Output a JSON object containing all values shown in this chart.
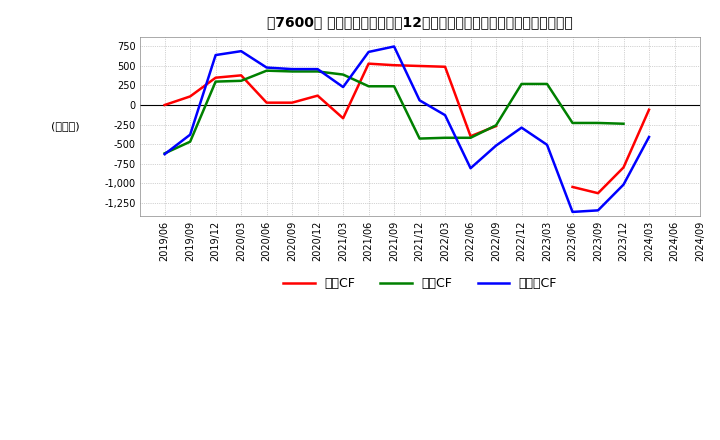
{
  "title": "【7600】 キャッシュフローの12か月移動合計の対前年同期増減額の推移",
  "ylabel": "(百万円)",
  "ylim": [
    -1420,
    870
  ],
  "yticks": [
    750,
    500,
    250,
    0,
    -250,
    -500,
    -750,
    -1000,
    -1250
  ],
  "background_color": "#ffffff",
  "plot_bg_color": "#ffffff",
  "grid_color": "#aaaaaa",
  "dates": [
    "2019/06",
    "2019/09",
    "2019/12",
    "2020/03",
    "2020/06",
    "2020/09",
    "2020/12",
    "2021/03",
    "2021/06",
    "2021/09",
    "2021/12",
    "2022/03",
    "2022/06",
    "2022/09",
    "2022/12",
    "2023/03",
    "2023/06",
    "2023/09",
    "2023/12",
    "2024/03",
    "2024/06",
    "2024/09"
  ],
  "eigyo_cf": [
    0,
    110,
    350,
    380,
    30,
    30,
    120,
    -170,
    530,
    510,
    500,
    490,
    -400,
    -270,
    null,
    null,
    -1050,
    -1130,
    -800,
    -60,
    null,
    null
  ],
  "toshi_cf": [
    -620,
    -470,
    300,
    310,
    440,
    430,
    430,
    390,
    240,
    240,
    -430,
    -420,
    -420,
    -260,
    270,
    270,
    -230,
    -230,
    -240,
    null,
    null,
    null
  ],
  "free_cf": [
    -630,
    -380,
    640,
    690,
    480,
    460,
    460,
    230,
    680,
    750,
    60,
    -130,
    -810,
    -520,
    -290,
    -510,
    -1370,
    -1350,
    -1020,
    -410,
    null,
    null
  ],
  "eigyo_color": "#ff0000",
  "toshi_color": "#008000",
  "free_color": "#0000ff",
  "legend_labels": [
    "営業CF",
    "投資CF",
    "フリーCF"
  ]
}
